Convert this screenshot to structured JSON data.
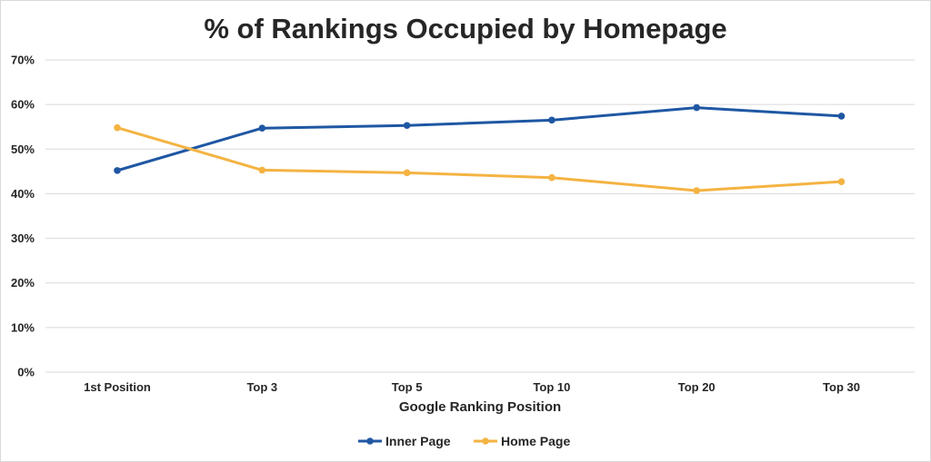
{
  "chart_data": {
    "type": "line",
    "title": "% of Rankings Occupied by Homepage",
    "xlabel": "Google Ranking Position",
    "ylabel": "",
    "categories": [
      "1st Position",
      "Top 3",
      "Top 5",
      "Top 10",
      "Top 20",
      "Top 30"
    ],
    "ylim": [
      0,
      70
    ],
    "y_ticks": [
      "0%",
      "10%",
      "20%",
      "30%",
      "40%",
      "50%",
      "60%",
      "70%"
    ],
    "y_tick_values": [
      0,
      10,
      20,
      30,
      40,
      50,
      60,
      70
    ],
    "grid": true,
    "legend_position": "bottom",
    "series": [
      {
        "name": "Inner Page",
        "color": "#1f57a3",
        "values": [
          45.2,
          54.7,
          55.3,
          56.5,
          59.3,
          57.4
        ]
      },
      {
        "name": "Home Page",
        "color": "#f4b342",
        "values": [
          54.8,
          45.3,
          44.7,
          43.6,
          40.7,
          42.7
        ]
      }
    ]
  }
}
